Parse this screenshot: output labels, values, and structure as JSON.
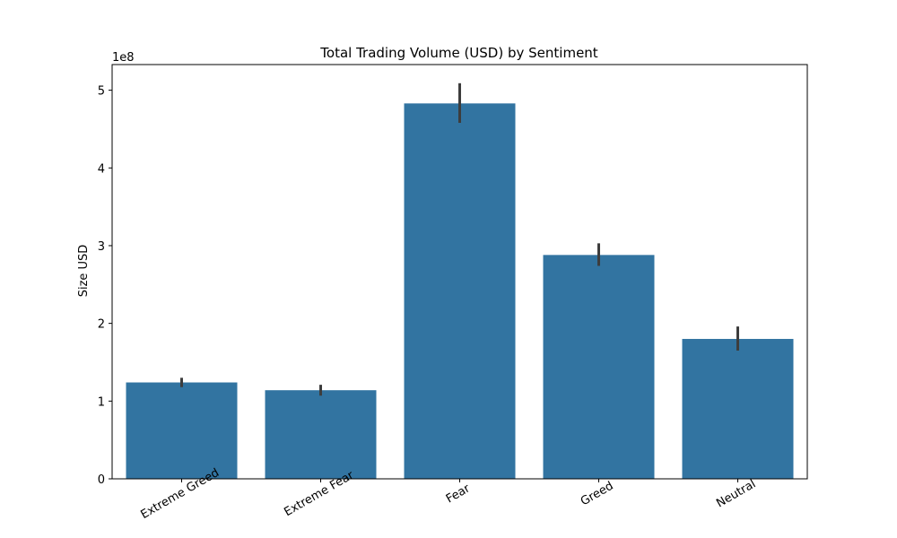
{
  "chart_data": {
    "type": "bar",
    "title": "Total Trading Volume (USD) by Sentiment",
    "xlabel": "",
    "ylabel": "Size USD",
    "offset_text": "1e8",
    "categories": [
      "Extreme Greed",
      "Extreme Fear",
      "Fear",
      "Greed",
      "Neutral"
    ],
    "values": [
      124000000,
      114000000,
      483000000,
      288000000,
      180000000
    ],
    "error_low": [
      118000000,
      107000000,
      458000000,
      274000000,
      165000000
    ],
    "error_high": [
      130000000,
      121000000,
      509000000,
      303000000,
      196000000
    ],
    "yticks": [
      0,
      100000000,
      200000000,
      300000000,
      400000000,
      500000000
    ],
    "ytick_labels": [
      "0",
      "1",
      "2",
      "3",
      "4",
      "5"
    ],
    "ylim": [
      0,
      533000000
    ],
    "grid": false,
    "colors": {
      "bar": "#3274a1",
      "error": "#3d3d3d"
    }
  }
}
